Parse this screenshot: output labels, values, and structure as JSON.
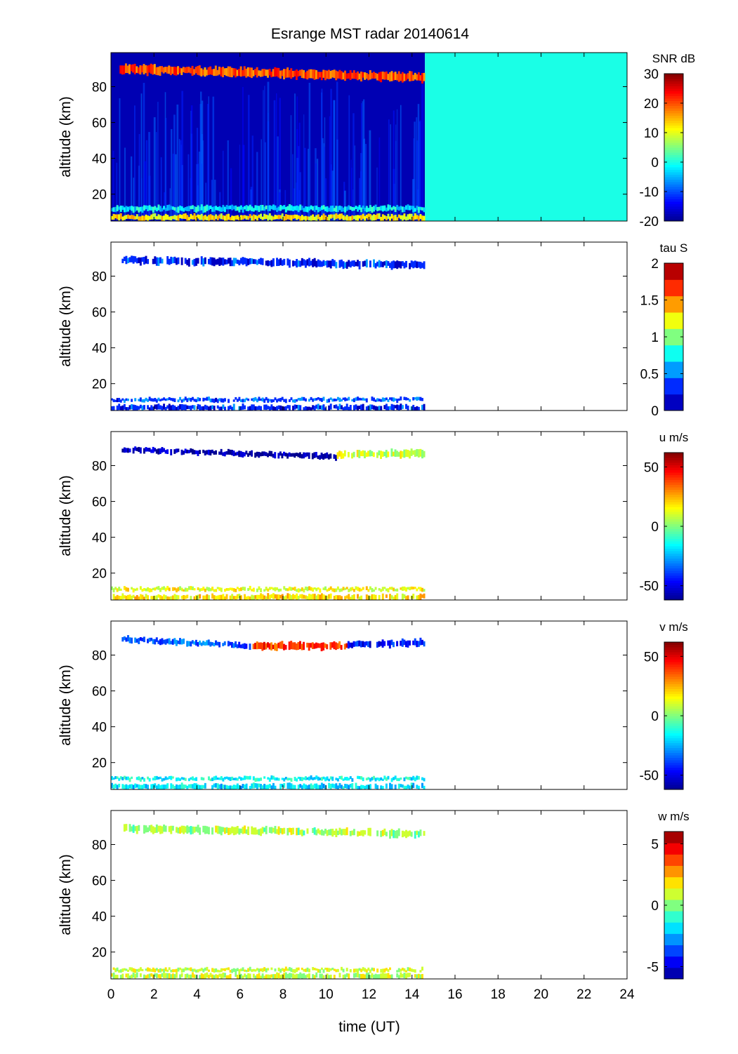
{
  "title": "Esrange MST radar 20140614",
  "colors": {
    "background": "#ffffff",
    "fill_no_data_snr": "#22ffdc",
    "jet_colormap": [
      "#00008f",
      "#0000ff",
      "#0080ff",
      "#00ffff",
      "#80ff80",
      "#ffff00",
      "#ff8000",
      "#ff0000",
      "#800000"
    ]
  },
  "chart_data": [
    {
      "type": "heatmap",
      "name": "snr",
      "colorbar_label": "SNR dB",
      "x_range": [
        0,
        24
      ],
      "y_range": [
        5,
        99
      ],
      "y_ticks": [
        20,
        40,
        60,
        80
      ],
      "clim": [
        -20,
        30
      ],
      "cb_ticks": [
        -20,
        -10,
        0,
        10,
        20,
        30
      ],
      "discrete_levels": null,
      "data_end_time": 14.6,
      "background_snr": -18,
      "fill_after_end": 0,
      "layers": [
        {
          "t0": 0.4,
          "t1": 14.6,
          "alt_start": 90,
          "alt_end": 85,
          "thickness": 5,
          "value": 20
        },
        {
          "t0": 0.0,
          "t1": 14.6,
          "alt_start": 12,
          "alt_end": 12,
          "thickness": 3,
          "value": -2
        },
        {
          "t0": 0.0,
          "t1": 14.6,
          "alt_start": 7,
          "alt_end": 7,
          "thickness": 3,
          "value": 12
        }
      ]
    },
    {
      "type": "heatmap",
      "name": "tau",
      "colorbar_label": "tau S",
      "x_range": [
        0,
        24
      ],
      "y_range": [
        5,
        99
      ],
      "y_ticks": [
        20,
        40,
        60,
        80
      ],
      "clim": [
        0,
        2
      ],
      "cb_ticks": [
        0,
        0.5,
        1,
        1.5,
        2
      ],
      "cb_tick_labels": [
        "0",
        "0.5",
        "1",
        "1.5",
        "2"
      ],
      "discrete_levels": 9,
      "data_end_time": 14.6,
      "layers": [
        {
          "t0": 0.5,
          "t1": 14.6,
          "alt_start": 89,
          "alt_end": 86,
          "thickness": 4,
          "value": 0.3
        },
        {
          "t0": 0.0,
          "t1": 14.6,
          "alt_start": 11,
          "alt_end": 11,
          "thickness": 2,
          "value": 0.4
        },
        {
          "t0": 0.0,
          "t1": 14.6,
          "alt_start": 6.5,
          "alt_end": 6.5,
          "thickness": 3,
          "value": 0.3
        }
      ]
    },
    {
      "type": "heatmap",
      "name": "u",
      "colorbar_label": "u m/s",
      "x_range": [
        0,
        24
      ],
      "y_range": [
        5,
        99
      ],
      "y_ticks": [
        20,
        40,
        60,
        80
      ],
      "clim": [
        -62,
        62
      ],
      "cb_ticks": [
        -50,
        0,
        50
      ],
      "discrete_levels": null,
      "data_end_time": 14.6,
      "layers": [
        {
          "t0": 0.5,
          "t1": 10.5,
          "alt_start": 89,
          "alt_end": 85,
          "thickness": 3,
          "value": -58
        },
        {
          "t0": 10.5,
          "t1": 14.6,
          "alt_start": 86,
          "alt_end": 87,
          "thickness": 4,
          "value": 10
        },
        {
          "t0": 0.0,
          "t1": 14.6,
          "alt_start": 11,
          "alt_end": 11,
          "thickness": 2,
          "value": 14
        },
        {
          "t0": 0.0,
          "t1": 14.6,
          "alt_start": 6.5,
          "alt_end": 6.5,
          "thickness": 3,
          "value": 18
        }
      ]
    },
    {
      "type": "heatmap",
      "name": "v",
      "colorbar_label": "v m/s",
      "x_range": [
        0,
        24
      ],
      "y_range": [
        5,
        99
      ],
      "y_ticks": [
        20,
        40,
        60,
        80
      ],
      "clim": [
        -62,
        62
      ],
      "cb_ticks": [
        -50,
        0,
        50
      ],
      "discrete_levels": null,
      "data_end_time": 14.6,
      "layers": [
        {
          "t0": 0.5,
          "t1": 6.5,
          "alt_start": 89,
          "alt_end": 85,
          "thickness": 3,
          "value": -35
        },
        {
          "t0": 6.5,
          "t1": 11.0,
          "alt_start": 85,
          "alt_end": 85,
          "thickness": 4,
          "value": 40
        },
        {
          "t0": 11.0,
          "t1": 14.6,
          "alt_start": 86,
          "alt_end": 87,
          "thickness": 4,
          "value": -45
        },
        {
          "t0": 0.0,
          "t1": 14.6,
          "alt_start": 11,
          "alt_end": 11,
          "thickness": 2,
          "value": -15
        },
        {
          "t0": 0.0,
          "t1": 14.6,
          "alt_start": 6.5,
          "alt_end": 6.5,
          "thickness": 3,
          "value": -20
        }
      ]
    },
    {
      "type": "heatmap",
      "name": "w",
      "colorbar_label": "w m/s",
      "x_range": [
        0,
        24
      ],
      "y_range": [
        5,
        99
      ],
      "y_ticks": [
        20,
        40,
        60,
        80
      ],
      "clim": [
        -6,
        6
      ],
      "cb_ticks": [
        -5,
        0,
        5
      ],
      "discrete_levels": 13,
      "data_end_time": 14.6,
      "layers": [
        {
          "t0": 0.5,
          "t1": 14.6,
          "alt_start": 89,
          "alt_end": 86,
          "thickness": 4,
          "value": 0.5
        },
        {
          "t0": 0.0,
          "t1": 14.6,
          "alt_start": 10,
          "alt_end": 10,
          "thickness": 2,
          "value": 1.0
        },
        {
          "t0": 0.0,
          "t1": 14.6,
          "alt_start": 6.5,
          "alt_end": 6.5,
          "thickness": 3,
          "value": 0.8
        }
      ]
    }
  ],
  "x_axis": {
    "label": "time (UT)",
    "ticks": [
      0,
      2,
      4,
      6,
      8,
      10,
      12,
      14,
      16,
      18,
      20,
      22,
      24
    ]
  },
  "y_axis": {
    "label": "altitude (km)"
  }
}
